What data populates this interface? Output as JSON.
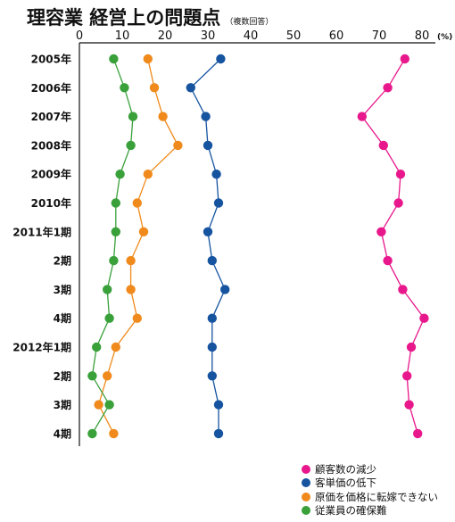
{
  "chart_data": {
    "type": "scatter",
    "title": "理容業 経営上の問題点",
    "subtitle": "（複数回答）",
    "unit": "(%)",
    "xlim": [
      0,
      80
    ],
    "xticks": [
      0,
      10,
      20,
      30,
      40,
      50,
      60,
      70,
      80
    ],
    "categories": [
      "2005年",
      "2006年",
      "2007年",
      "2008年",
      "2009年",
      "2010年",
      "2011年1期",
      "2期",
      "3期",
      "4期",
      "2012年1期",
      "2期",
      "3期",
      "4期"
    ],
    "series": [
      {
        "name": "顧客数の減少",
        "color": "#e8188c",
        "values": [
          76,
          72,
          66,
          71,
          75,
          74.5,
          70.5,
          72,
          75.5,
          80.5,
          77.5,
          76.5,
          77,
          79
        ]
      },
      {
        "name": "客単価の低下",
        "color": "#1654a0",
        "values": [
          33,
          26,
          29.5,
          30,
          32,
          32.5,
          30,
          31,
          34,
          31,
          31,
          31,
          32.5,
          32.5
        ]
      },
      {
        "name": "原価を価格に転嫁できない",
        "color": "#f08a1c",
        "values": [
          16,
          17.5,
          19.5,
          23,
          16,
          13.5,
          15,
          12,
          12,
          13.5,
          8.5,
          6.5,
          4.5,
          8
        ]
      },
      {
        "name": "従業員の確保難",
        "color": "#39a03a",
        "values": [
          8,
          10.5,
          12.5,
          12,
          9.5,
          8.5,
          8.5,
          8,
          6.5,
          7,
          4,
          3,
          7,
          3
        ]
      }
    ],
    "grid": false,
    "legend": "bottom-right"
  }
}
